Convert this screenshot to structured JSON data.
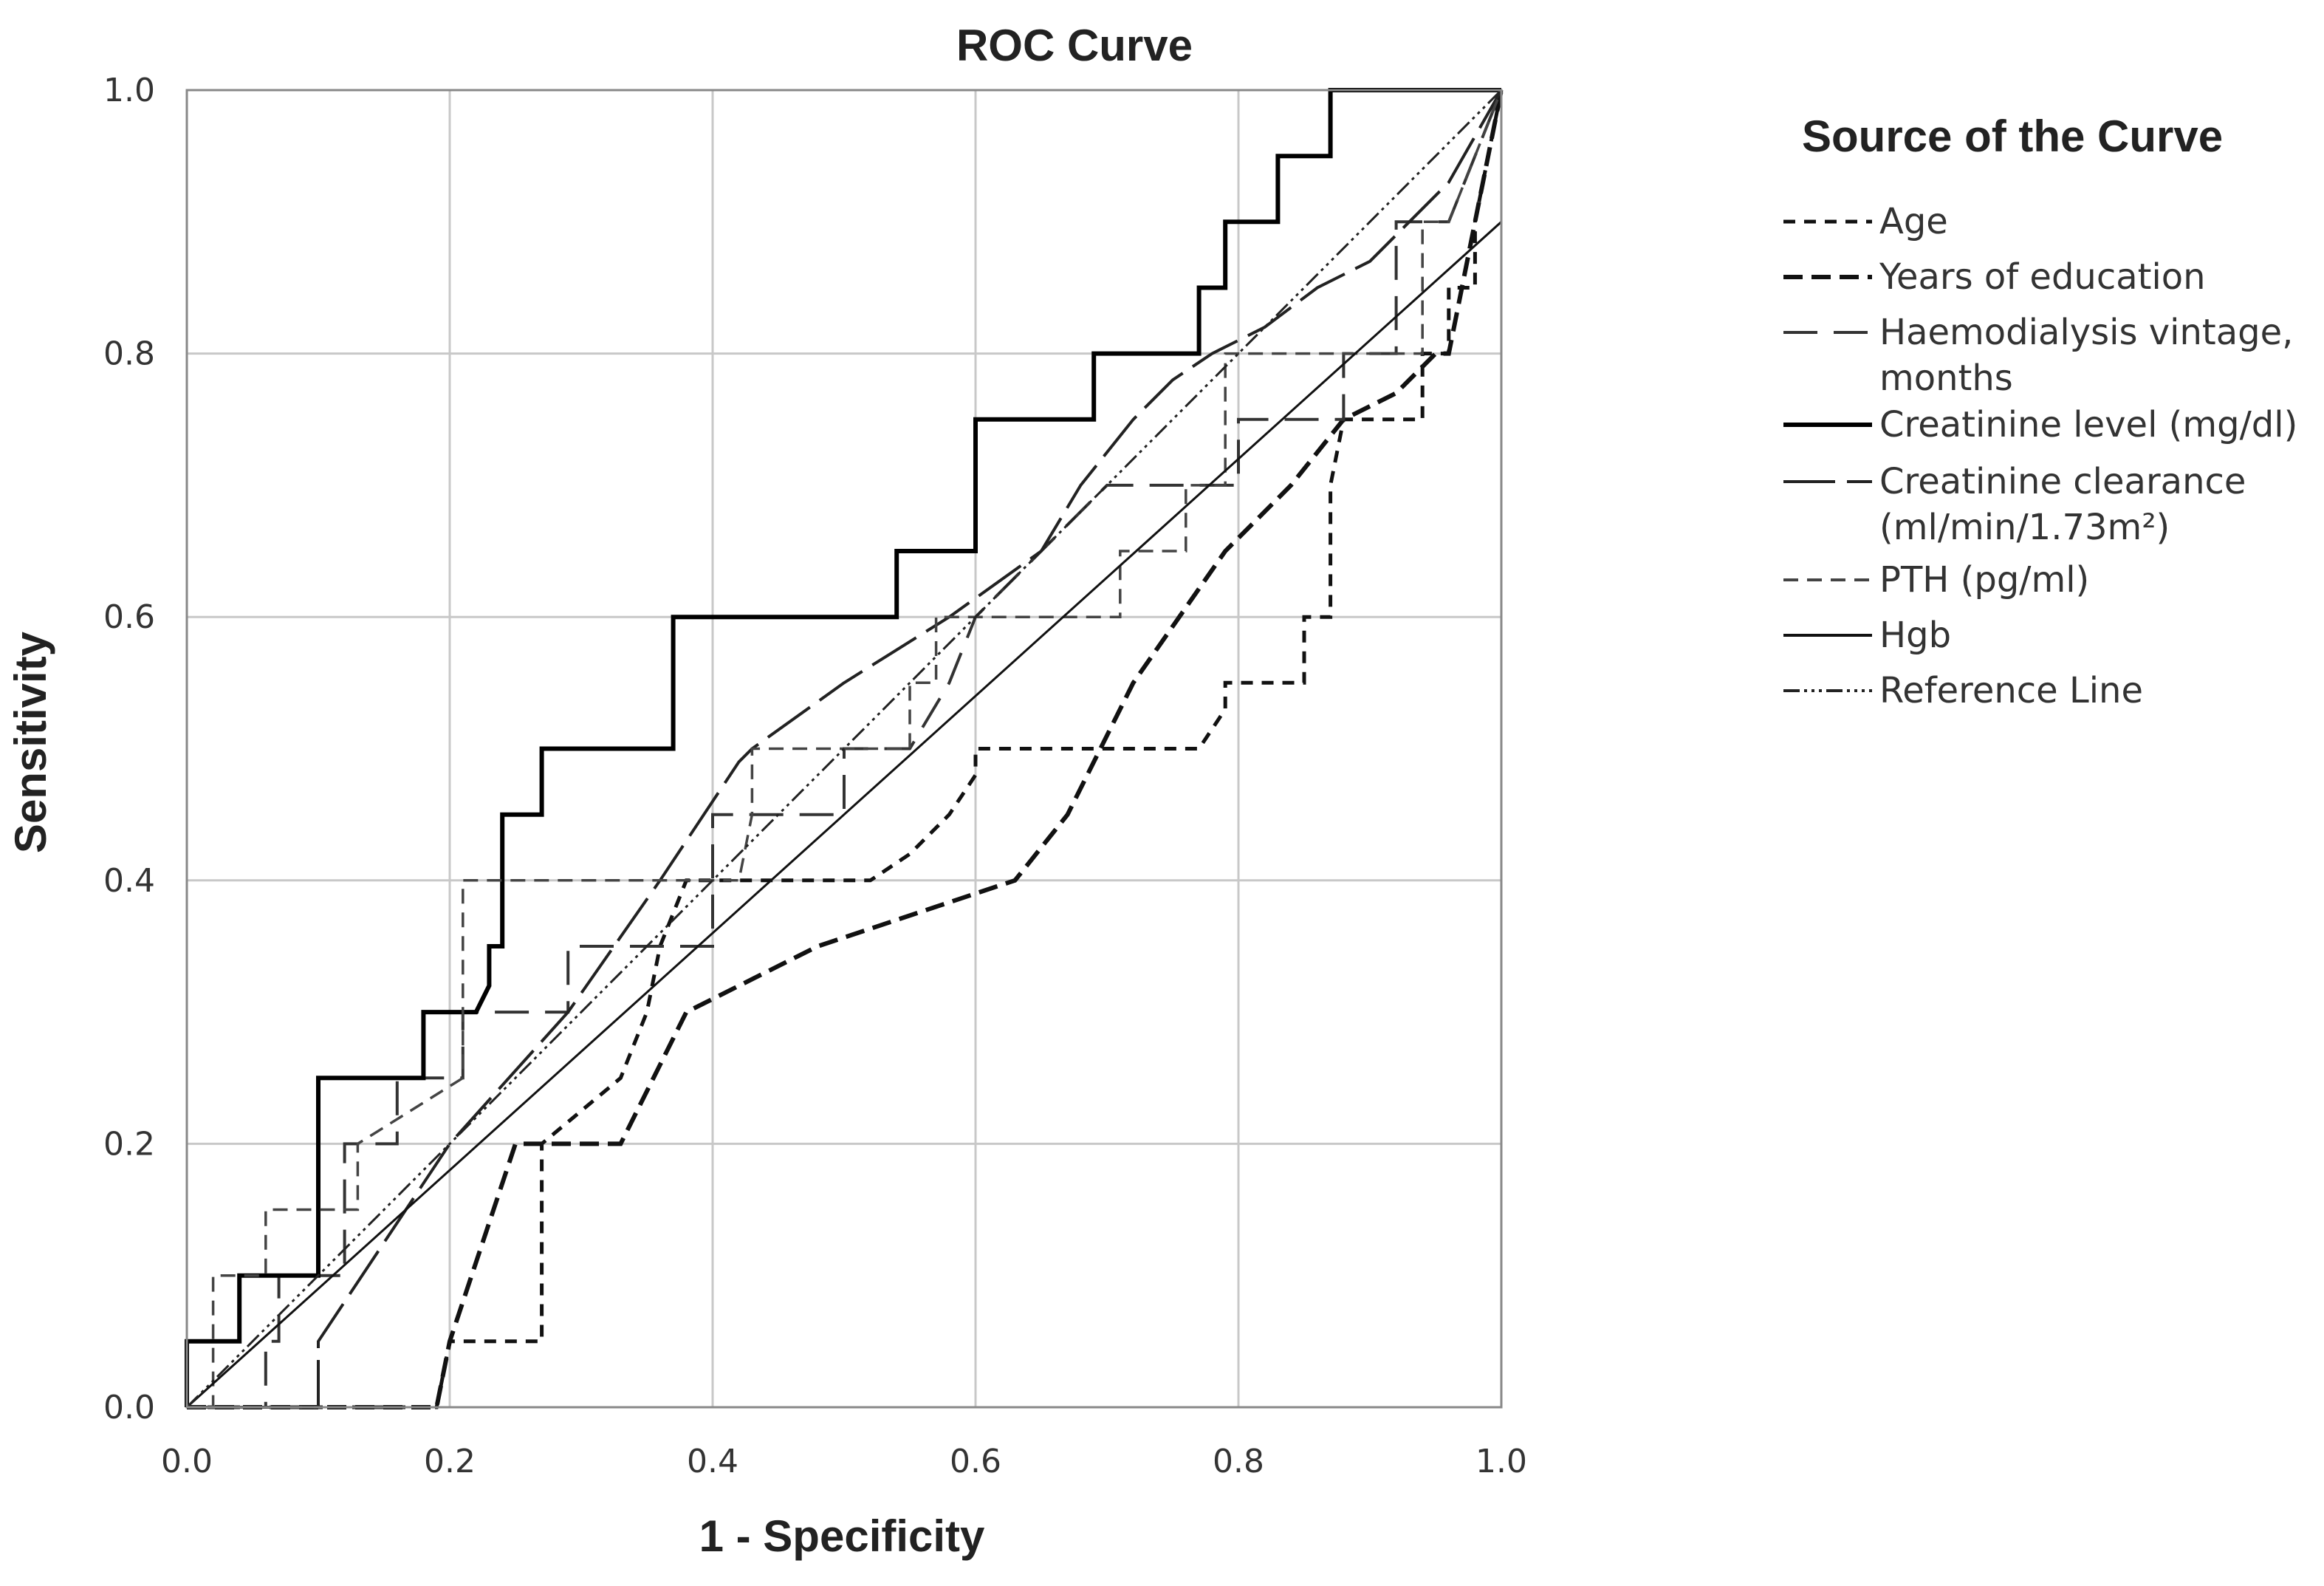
{
  "chart_data": {
    "type": "line",
    "title": "ROC Curve",
    "xlabel": "1 - Specificity",
    "ylabel": "Sensitivity",
    "xlim": [
      0,
      1
    ],
    "ylim": [
      0,
      1
    ],
    "grid": true,
    "x_ticks": [
      "0.0",
      "0.2",
      "0.4",
      "0.6",
      "0.8",
      "1.0"
    ],
    "y_ticks": [
      "0.0",
      "0.2",
      "0.4",
      "0.6",
      "0.8",
      "1.0"
    ],
    "legend_title": "Source of the Curve",
    "legend_position": "right",
    "legend": [
      "Age",
      "Years of education",
      [
        "Haemodialysis vintage,",
        "months"
      ],
      "Creatinine level (mg/dl)",
      [
        "Creatinine clearance",
        "(ml/min/1.73m²)"
      ],
      "PTH (pg/ml)",
      "Hgb",
      "Reference Line"
    ],
    "series": [
      {
        "name": "Age",
        "color": "#111111",
        "x": [
          0,
          0.18,
          0.19,
          0.2,
          0.2,
          0.27,
          0.27,
          0.33,
          0.35,
          0.36,
          0.38,
          0.4,
          0.52,
          0.55,
          0.57,
          0.58,
          0.6,
          0.6,
          0.77,
          0.79,
          0.79,
          0.84,
          0.85,
          0.85,
          0.86,
          0.87,
          0.87,
          0.88,
          0.94,
          0.94,
          0.96,
          0.96,
          0.98,
          0.98,
          1.0
        ],
        "y": [
          0,
          0,
          0,
          0.05,
          0.05,
          0.05,
          0.2,
          0.25,
          0.3,
          0.35,
          0.4,
          0.4,
          0.4,
          0.42,
          0.44,
          0.45,
          0.48,
          0.5,
          0.5,
          0.53,
          0.55,
          0.55,
          0.55,
          0.6,
          0.6,
          0.6,
          0.7,
          0.75,
          0.75,
          0.8,
          0.8,
          0.85,
          0.85,
          0.9,
          1.0
        ]
      },
      {
        "name": "Years of education",
        "color": "#111111",
        "x": [
          0,
          0.19,
          0.2,
          0.25,
          0.33,
          0.38,
          0.48,
          0.6,
          0.63,
          0.67,
          0.72,
          0.79,
          0.84,
          0.88,
          0.92,
          0.95,
          0.96,
          0.97,
          0.98,
          1.0
        ],
        "y": [
          0,
          0,
          0.05,
          0.2,
          0.2,
          0.3,
          0.35,
          0.39,
          0.4,
          0.45,
          0.55,
          0.65,
          0.7,
          0.75,
          0.77,
          0.8,
          0.8,
          0.85,
          0.9,
          1.0
        ]
      },
      {
        "name": "Haemodialysis vintage, months",
        "color": "#333333",
        "x": [
          0,
          0.06,
          0.06,
          0.07,
          0.07,
          0.12,
          0.12,
          0.16,
          0.16,
          0.2,
          0.21,
          0.21,
          0.29,
          0.29,
          0.4,
          0.4,
          0.5,
          0.5,
          0.55,
          0.58,
          0.6,
          0.65,
          0.7,
          0.72,
          0.72,
          0.8,
          0.8,
          0.84,
          0.84,
          0.88,
          0.88,
          0.92,
          0.92,
          0.96,
          0.96,
          1.0
        ],
        "y": [
          0,
          0,
          0.05,
          0.05,
          0.1,
          0.1,
          0.2,
          0.2,
          0.25,
          0.25,
          0.25,
          0.3,
          0.3,
          0.35,
          0.35,
          0.45,
          0.45,
          0.5,
          0.5,
          0.55,
          0.6,
          0.65,
          0.7,
          0.7,
          0.7,
          0.7,
          0.75,
          0.75,
          0.75,
          0.75,
          0.8,
          0.8,
          0.9,
          0.9,
          0.9,
          1.0
        ]
      },
      {
        "name": "Creatinine level (mg/dl)",
        "color": "#000000",
        "x": [
          0,
          0,
          0.04,
          0.04,
          0.1,
          0.1,
          0.18,
          0.18,
          0.22,
          0.22,
          0.23,
          0.23,
          0.24,
          0.24,
          0.27,
          0.27,
          0.37,
          0.37,
          0.54,
          0.54,
          0.6,
          0.6,
          0.69,
          0.69,
          0.77,
          0.77,
          0.79,
          0.79,
          0.83,
          0.83,
          0.87,
          0.87,
          1.0,
          1.0
        ],
        "y": [
          0,
          0.05,
          0.05,
          0.1,
          0.1,
          0.25,
          0.25,
          0.3,
          0.3,
          0.3,
          0.32,
          0.35,
          0.35,
          0.45,
          0.45,
          0.5,
          0.5,
          0.6,
          0.6,
          0.65,
          0.65,
          0.75,
          0.75,
          0.8,
          0.8,
          0.85,
          0.85,
          0.9,
          0.9,
          0.95,
          0.95,
          1.0,
          1.0,
          1.0
        ]
      },
      {
        "name": "Creatinine clearance (ml/min/1.73m²)",
        "color": "#222222",
        "x": [
          0,
          0.1,
          0.1,
          0.2,
          0.29,
          0.36,
          0.42,
          0.43,
          0.5,
          0.58,
          0.65,
          0.68,
          0.72,
          0.75,
          0.78,
          0.82,
          0.86,
          0.9,
          0.93,
          0.96,
          1.0
        ],
        "y": [
          0,
          0,
          0.05,
          0.2,
          0.3,
          0.4,
          0.49,
          0.5,
          0.55,
          0.6,
          0.65,
          0.7,
          0.75,
          0.78,
          0.8,
          0.82,
          0.85,
          0.87,
          0.9,
          0.93,
          1.0
        ]
      },
      {
        "name": "PTH (pg/ml)",
        "color": "#444444",
        "x": [
          0,
          0.02,
          0.02,
          0.06,
          0.06,
          0.1,
          0.13,
          0.13,
          0.21,
          0.21,
          0.36,
          0.4,
          0.42,
          0.43,
          0.43,
          0.55,
          0.55,
          0.57,
          0.57,
          0.71,
          0.71,
          0.76,
          0.76,
          0.79,
          0.79,
          0.94,
          0.94,
          0.96,
          1.0
        ],
        "y": [
          0,
          0,
          0.1,
          0.1,
          0.15,
          0.15,
          0.15,
          0.2,
          0.25,
          0.4,
          0.4,
          0.4,
          0.4,
          0.45,
          0.5,
          0.5,
          0.55,
          0.55,
          0.6,
          0.6,
          0.65,
          0.65,
          0.7,
          0.7,
          0.8,
          0.8,
          0.9,
          0.9,
          1.0
        ]
      },
      {
        "name": "Hgb",
        "color": "#111111",
        "x": [
          0,
          1.0
        ],
        "y": [
          0,
          0.9
        ]
      },
      {
        "name": "Reference Line",
        "color": "#222222",
        "x": [
          0,
          1.0
        ],
        "y": [
          0,
          1.0
        ]
      }
    ]
  }
}
